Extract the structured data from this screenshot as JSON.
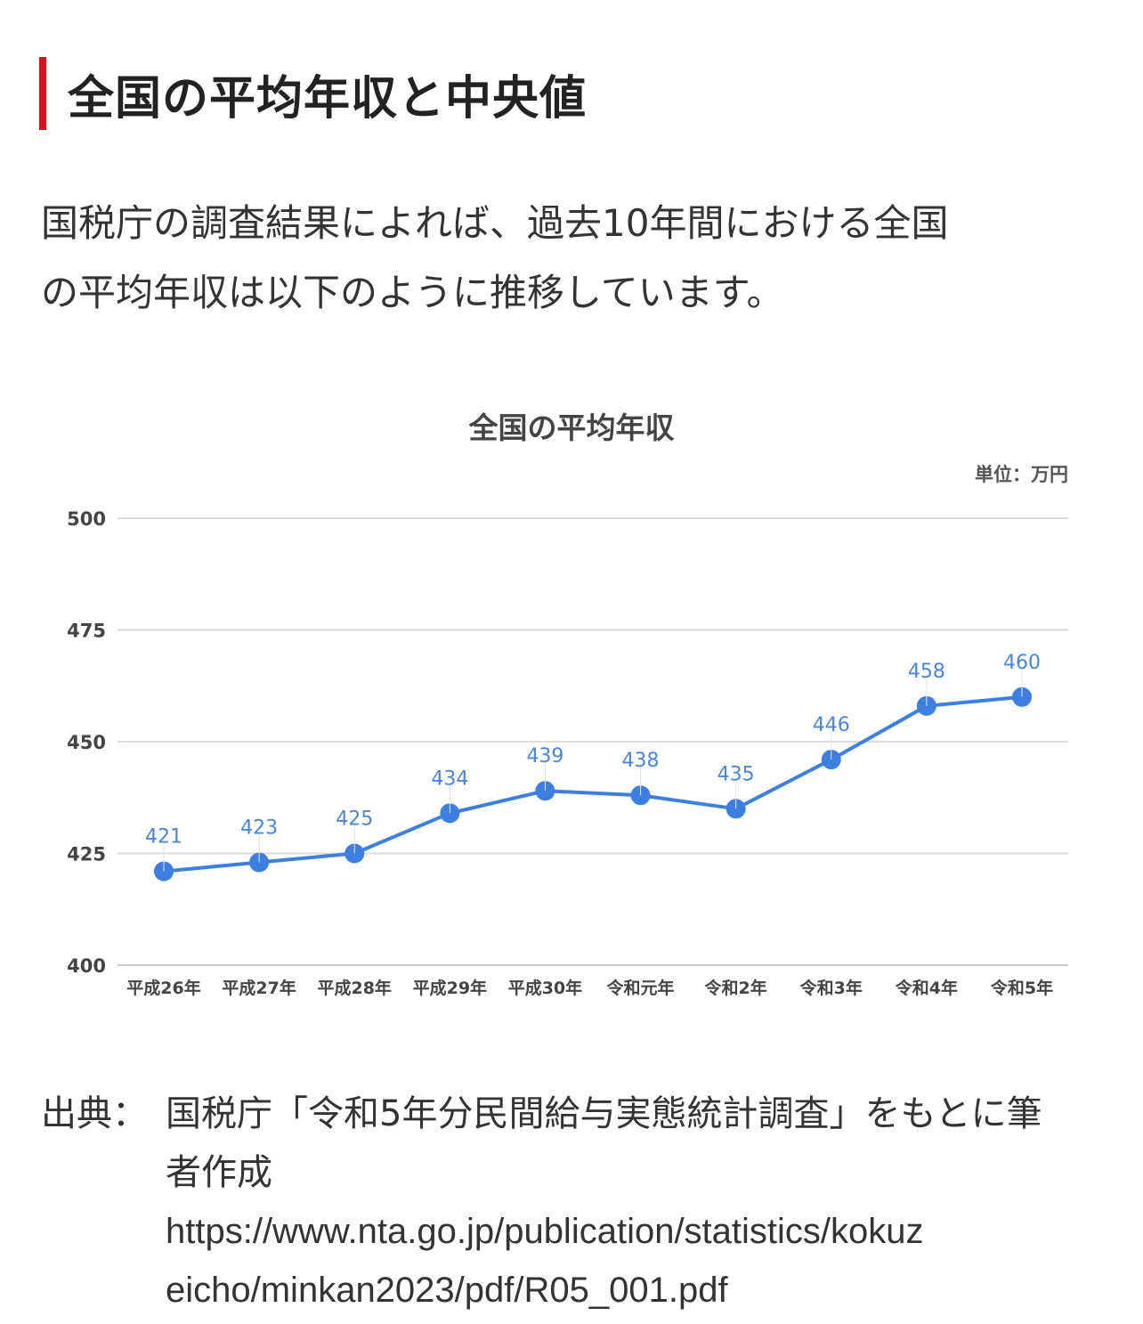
{
  "heading": "全国の平均年収と中央値",
  "intro": {
    "line1": "国税庁の調査結果によれば、過去10年間における全国",
    "line2": "の平均年収は以下のように推移しています。"
  },
  "chart_data": {
    "type": "line",
    "title": "全国の平均年収",
    "unit_label": "単位：万円",
    "categories": [
      "平成26年",
      "平成27年",
      "平成28年",
      "平成29年",
      "平成30年",
      "令和元年",
      "令和2年",
      "令和3年",
      "令和4年",
      "令和5年"
    ],
    "series": [
      {
        "values": [
          421,
          423,
          425,
          434,
          439,
          438,
          435,
          446,
          458,
          460
        ]
      }
    ],
    "y_ticks": [
      "500",
      "475",
      "450",
      "425",
      "400"
    ],
    "ylim": [
      400,
      500
    ],
    "grid": true,
    "data_labels": true,
    "line_color": "#3d7fe0",
    "label_color": "#4a86d8"
  },
  "source": {
    "label": "出典：",
    "line1": "国税庁「令和5年分民間給与実態統計調査」をもとに筆",
    "line2": "者作成",
    "url_line1": "https://www.nta.go.jp/publication/statistics/kokuz",
    "url_line2": "eicho/minkan2023/pdf/R05_001.pdf"
  }
}
